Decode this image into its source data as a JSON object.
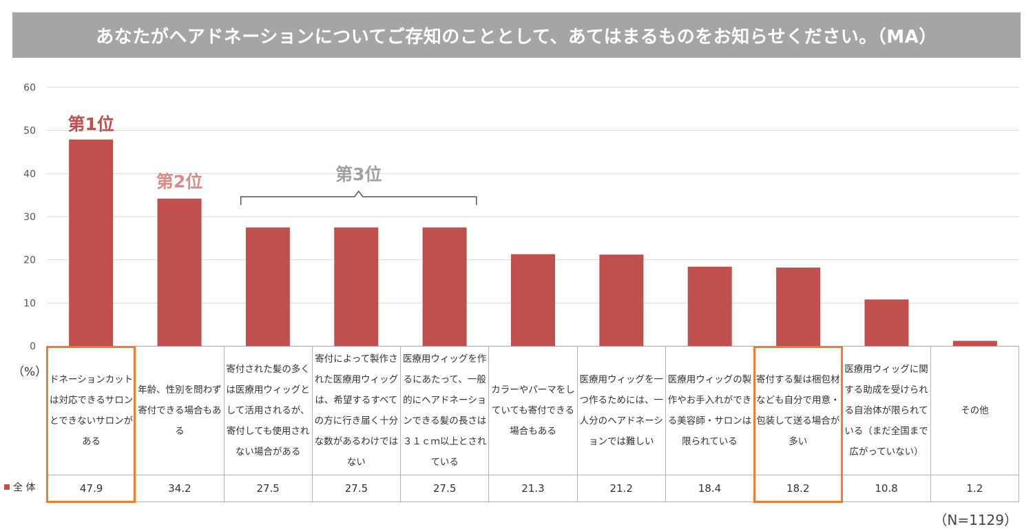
{
  "header": {
    "title": "あなたがヘアドネーションについてご存知のこととして、あてはまるものをお知らせください。（MA）"
  },
  "chart_data": {
    "type": "bar",
    "title": "あなたがヘアドネーションについてご存知のこととして、あてはまるものをお知らせください。（MA）",
    "ylabel": "（%）",
    "ylim": [
      0,
      60
    ],
    "yticks": [
      0,
      10,
      20,
      30,
      40,
      50,
      60
    ],
    "grid": true,
    "categories": [
      "ドネーションカットは対応できるサロンとできないサロンがある",
      "年齢、性別を問わず寄付できる場合もある",
      "寄付された髪の多くは医療用ウィッグとして活用されるが、寄付しても使用されない場合がある",
      "寄付によって製作された医療用ウィッグは、希望するすべての方に行き届く十分な数があるわけではない",
      "医療用ウィッグを作るにあたって、一般的にヘアドネーションできる髪の長さは３１ｃｍ以上とされている",
      "カラーやパーマをしていても寄付できる場合もある",
      "医療用ウィッグを一つ作るためには、一人分のヘアドネーションでは難しい",
      "医療用ウィッグの製作やお手入れができる美容師・サロンは限られている",
      "寄付する髪は梱包材なども自分で用意・包装して送る場合が多い",
      "医療用ウィッグに関する助成を受けられる自治体が限られている（まだ全国まで広がっていない）",
      "その他"
    ],
    "series": [
      {
        "name": "全 体",
        "color": "#c0504d",
        "values": [
          47.9,
          34.2,
          27.5,
          27.5,
          27.5,
          21.3,
          21.2,
          18.4,
          18.2,
          10.8,
          1.2
        ]
      }
    ],
    "value_labels": [
      "47.9",
      "34.2",
      "27.5",
      "27.5",
      "27.5",
      "21.3",
      "21.2",
      "18.4",
      "18.2",
      "10.8",
      "1.2"
    ],
    "annotations": {
      "rank1": {
        "text": "第1位",
        "category_index": 0,
        "color": "#c0504d"
      },
      "rank2": {
        "text": "第2位",
        "category_index": 1,
        "color": "#d98b89"
      },
      "rank3": {
        "text": "第3位",
        "category_range": [
          2,
          4
        ],
        "color": "#a0a0a0"
      }
    },
    "highlighted_categories": [
      0,
      8
    ],
    "highlight_color": "#ed7d31",
    "note": "（N=1129）"
  },
  "ui": {
    "series_label": "全 体",
    "n_note": "（N=1129）",
    "y_unit": "（%）"
  }
}
